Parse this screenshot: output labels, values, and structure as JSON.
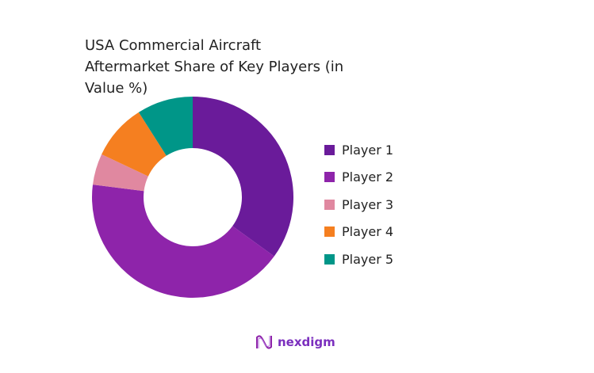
{
  "chart_data": {
    "type": "pie",
    "variant": "donut",
    "title": "USA Commercial Aircraft Aftermarket Share of Key Players (in Value %)",
    "categories": [
      "Player 1",
      "Player 2",
      "Player 3",
      "Player 4",
      "Player 5"
    ],
    "values": [
      35,
      42,
      5,
      9,
      9
    ],
    "unit": "%",
    "colors": [
      "#6a1b9a",
      "#8e24aa",
      "#e088a0",
      "#f57f20",
      "#009688"
    ],
    "legend_position": "right"
  },
  "branding": {
    "logo_text": "nexdigm",
    "logo_color": "#7b2fbe"
  }
}
